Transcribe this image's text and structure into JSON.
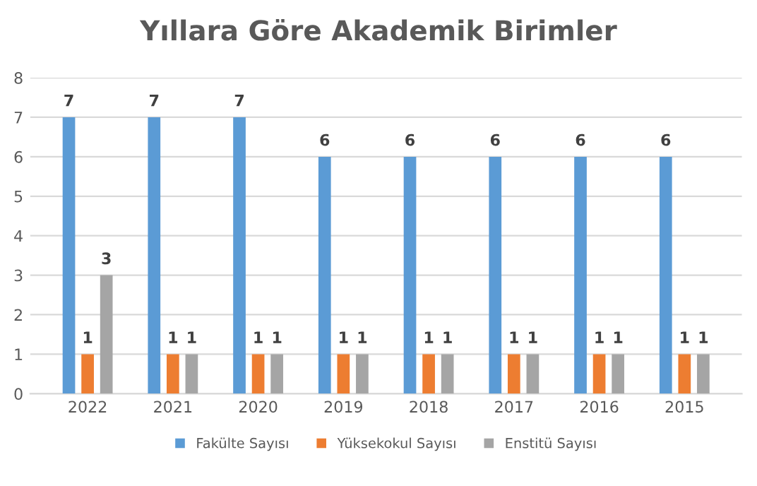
{
  "chart_data": {
    "type": "bar",
    "title": "Yıllara Göre Akademik Birimler",
    "categories": [
      "2022",
      "2021",
      "2020",
      "2019",
      "2018",
      "2017",
      "2016",
      "2015"
    ],
    "series": [
      {
        "name": "Fakülte Sayısı",
        "color": "#5b9bd5",
        "values": [
          7,
          7,
          7,
          6,
          6,
          6,
          6,
          6
        ]
      },
      {
        "name": "Yüksekokul Sayısı",
        "color": "#ed7d31",
        "values": [
          1,
          1,
          1,
          1,
          1,
          1,
          1,
          1
        ]
      },
      {
        "name": "Enstitü Sayısı",
        "color": "#a5a5a5",
        "values": [
          3,
          1,
          1,
          1,
          1,
          1,
          1,
          1
        ]
      }
    ],
    "ylim": [
      0,
      8
    ],
    "yticks": [
      0,
      1,
      2,
      3,
      4,
      5,
      6,
      7,
      8
    ],
    "grid": "y",
    "legend": "bottom",
    "data_labels": true
  }
}
